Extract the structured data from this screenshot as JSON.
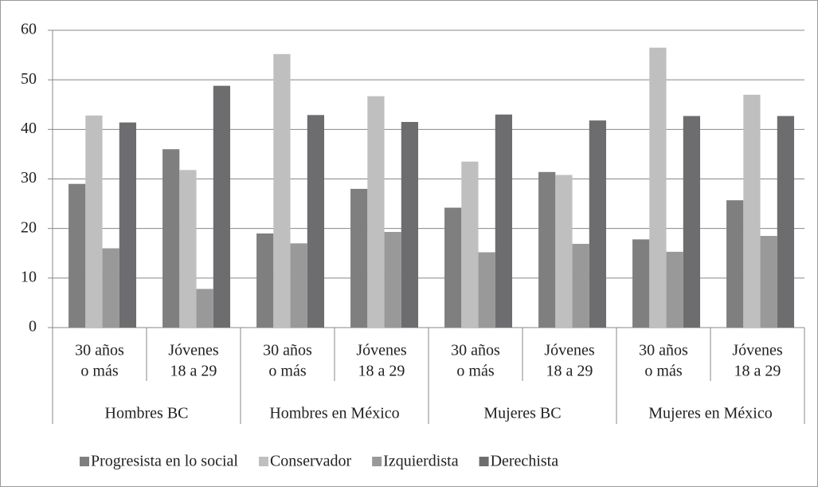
{
  "chart_data": {
    "type": "bar",
    "groups": [
      "Hombres BC",
      "Hombres en México",
      "Mujeres BC",
      "Mujeres en México"
    ],
    "categories": [
      [
        "30 años",
        "o más"
      ],
      [
        "Jóvenes",
        "18 a 29"
      ],
      [
        "30 años",
        "o más"
      ],
      [
        "Jóvenes",
        "18 a 29"
      ],
      [
        "30 años",
        "o más"
      ],
      [
        "Jóvenes",
        "18 a 29"
      ],
      [
        "30 años",
        "o más"
      ],
      [
        "Jóvenes",
        "18 a 29"
      ]
    ],
    "series": [
      {
        "name": "Progresista en lo social",
        "color": "#7f7f7f",
        "values": [
          29,
          36,
          19,
          28,
          24.2,
          31.4,
          17.8,
          25.7
        ]
      },
      {
        "name": "Conservador",
        "color": "#bfbfbf",
        "values": [
          42.8,
          31.8,
          55.2,
          46.7,
          33.5,
          30.8,
          56.5,
          47
        ]
      },
      {
        "name": "Izquierdista",
        "color": "#999999",
        "values": [
          16,
          7.8,
          17,
          19.3,
          15.2,
          16.9,
          15.3,
          18.5
        ]
      },
      {
        "name": "Derechista",
        "color": "#6d6d6f",
        "values": [
          41.4,
          48.8,
          42.9,
          41.5,
          43,
          41.8,
          42.7,
          42.7
        ]
      }
    ],
    "ylim": [
      0,
      60
    ],
    "yticks": [
      0,
      10,
      20,
      30,
      40,
      50,
      60
    ],
    "grid": true,
    "legend": "bottom"
  }
}
